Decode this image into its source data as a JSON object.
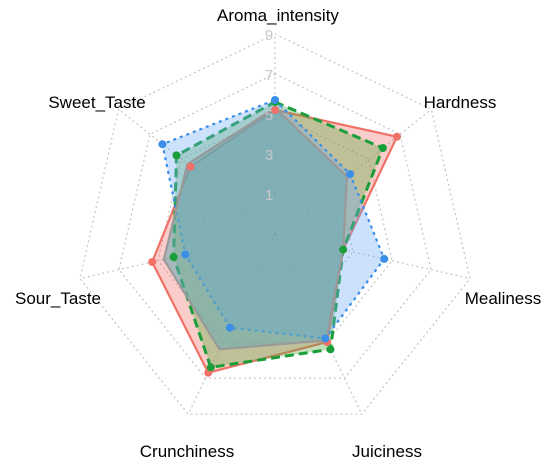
{
  "chart_data": {
    "type": "radar",
    "title": "",
    "axes": [
      "Aroma_intensity",
      "Hardness",
      "Mealiness",
      "Juiciness",
      "Crunchiness",
      "Sour_Taste",
      "Sweet_Taste"
    ],
    "range": [
      -1,
      9
    ],
    "ticks": [
      "1",
      "3",
      "5",
      "7",
      "9"
    ],
    "tick_values": [
      1,
      3,
      5,
      7,
      9
    ],
    "grid": true,
    "legend": "none",
    "series": [
      {
        "values": [
          5.2,
          6.8,
          2.5,
          5.0,
          6.7,
          5.3,
          4.4
        ],
        "color": "#f07167",
        "fill": "rgba(240,113,103,0.35)",
        "line_style": "solid"
      },
      {
        "values": [
          5.6,
          5.9,
          2.5,
          5.4,
          6.4,
          4.2,
          5.3
        ],
        "color": "#1a9e3a",
        "fill": "rgba(80,170,60,0.35)",
        "line_style": "dashed"
      },
      {
        "values": [
          5.7,
          3.8,
          4.6,
          4.8,
          4.2,
          3.6,
          6.2
        ],
        "color": "#3a8ee8",
        "fill": "rgba(110,170,245,0.35)",
        "line_style": "dotted"
      },
      {
        "values": [
          5.3,
          3.6,
          2.5,
          4.9,
          5.4,
          4.7,
          4.6
        ],
        "color": "#999999",
        "fill": "rgba(100,170,180,0.55)",
        "line_style": "solid"
      }
    ]
  }
}
